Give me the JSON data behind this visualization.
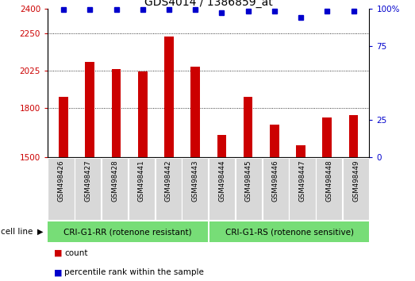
{
  "title": "GDS4014 / 1386859_at",
  "categories": [
    "GSM498426",
    "GSM498427",
    "GSM498428",
    "GSM498441",
    "GSM498442",
    "GSM498443",
    "GSM498444",
    "GSM498445",
    "GSM498446",
    "GSM498447",
    "GSM498448",
    "GSM498449"
  ],
  "bar_values": [
    1865,
    2075,
    2035,
    2020,
    2230,
    2050,
    1635,
    1865,
    1700,
    1575,
    1740,
    1755
  ],
  "percentile_values": [
    99,
    99,
    99,
    99,
    99,
    99,
    97,
    98,
    98,
    94,
    98,
    98
  ],
  "bar_color": "#cc0000",
  "dot_color": "#0000cc",
  "ylim_left": [
    1500,
    2400
  ],
  "ylim_right": [
    0,
    100
  ],
  "yticks_left": [
    1500,
    1800,
    2025,
    2250,
    2400
  ],
  "yticks_right": [
    0,
    25,
    75,
    100
  ],
  "yticks_right_labels": [
    "0",
    "25",
    "75",
    "100%"
  ],
  "gridline_yticks": [
    1800,
    2025,
    2250
  ],
  "group1_label": "CRI-G1-RR (rotenone resistant)",
  "group2_label": "CRI-G1-RS (rotenone sensitive)",
  "group1_count": 6,
  "group2_count": 6,
  "group_bg_color": "#77dd77",
  "tick_bg_color": "#d8d8d8",
  "cell_line_label": "cell line",
  "legend_count_label": "count",
  "legend_pct_label": "percentile rank within the sample",
  "gridline_color": "#000000",
  "bar_width": 0.35,
  "title_fontsize": 10,
  "tick_fontsize": 7.5,
  "label_fontsize": 7.5,
  "group_fontsize": 7.5
}
